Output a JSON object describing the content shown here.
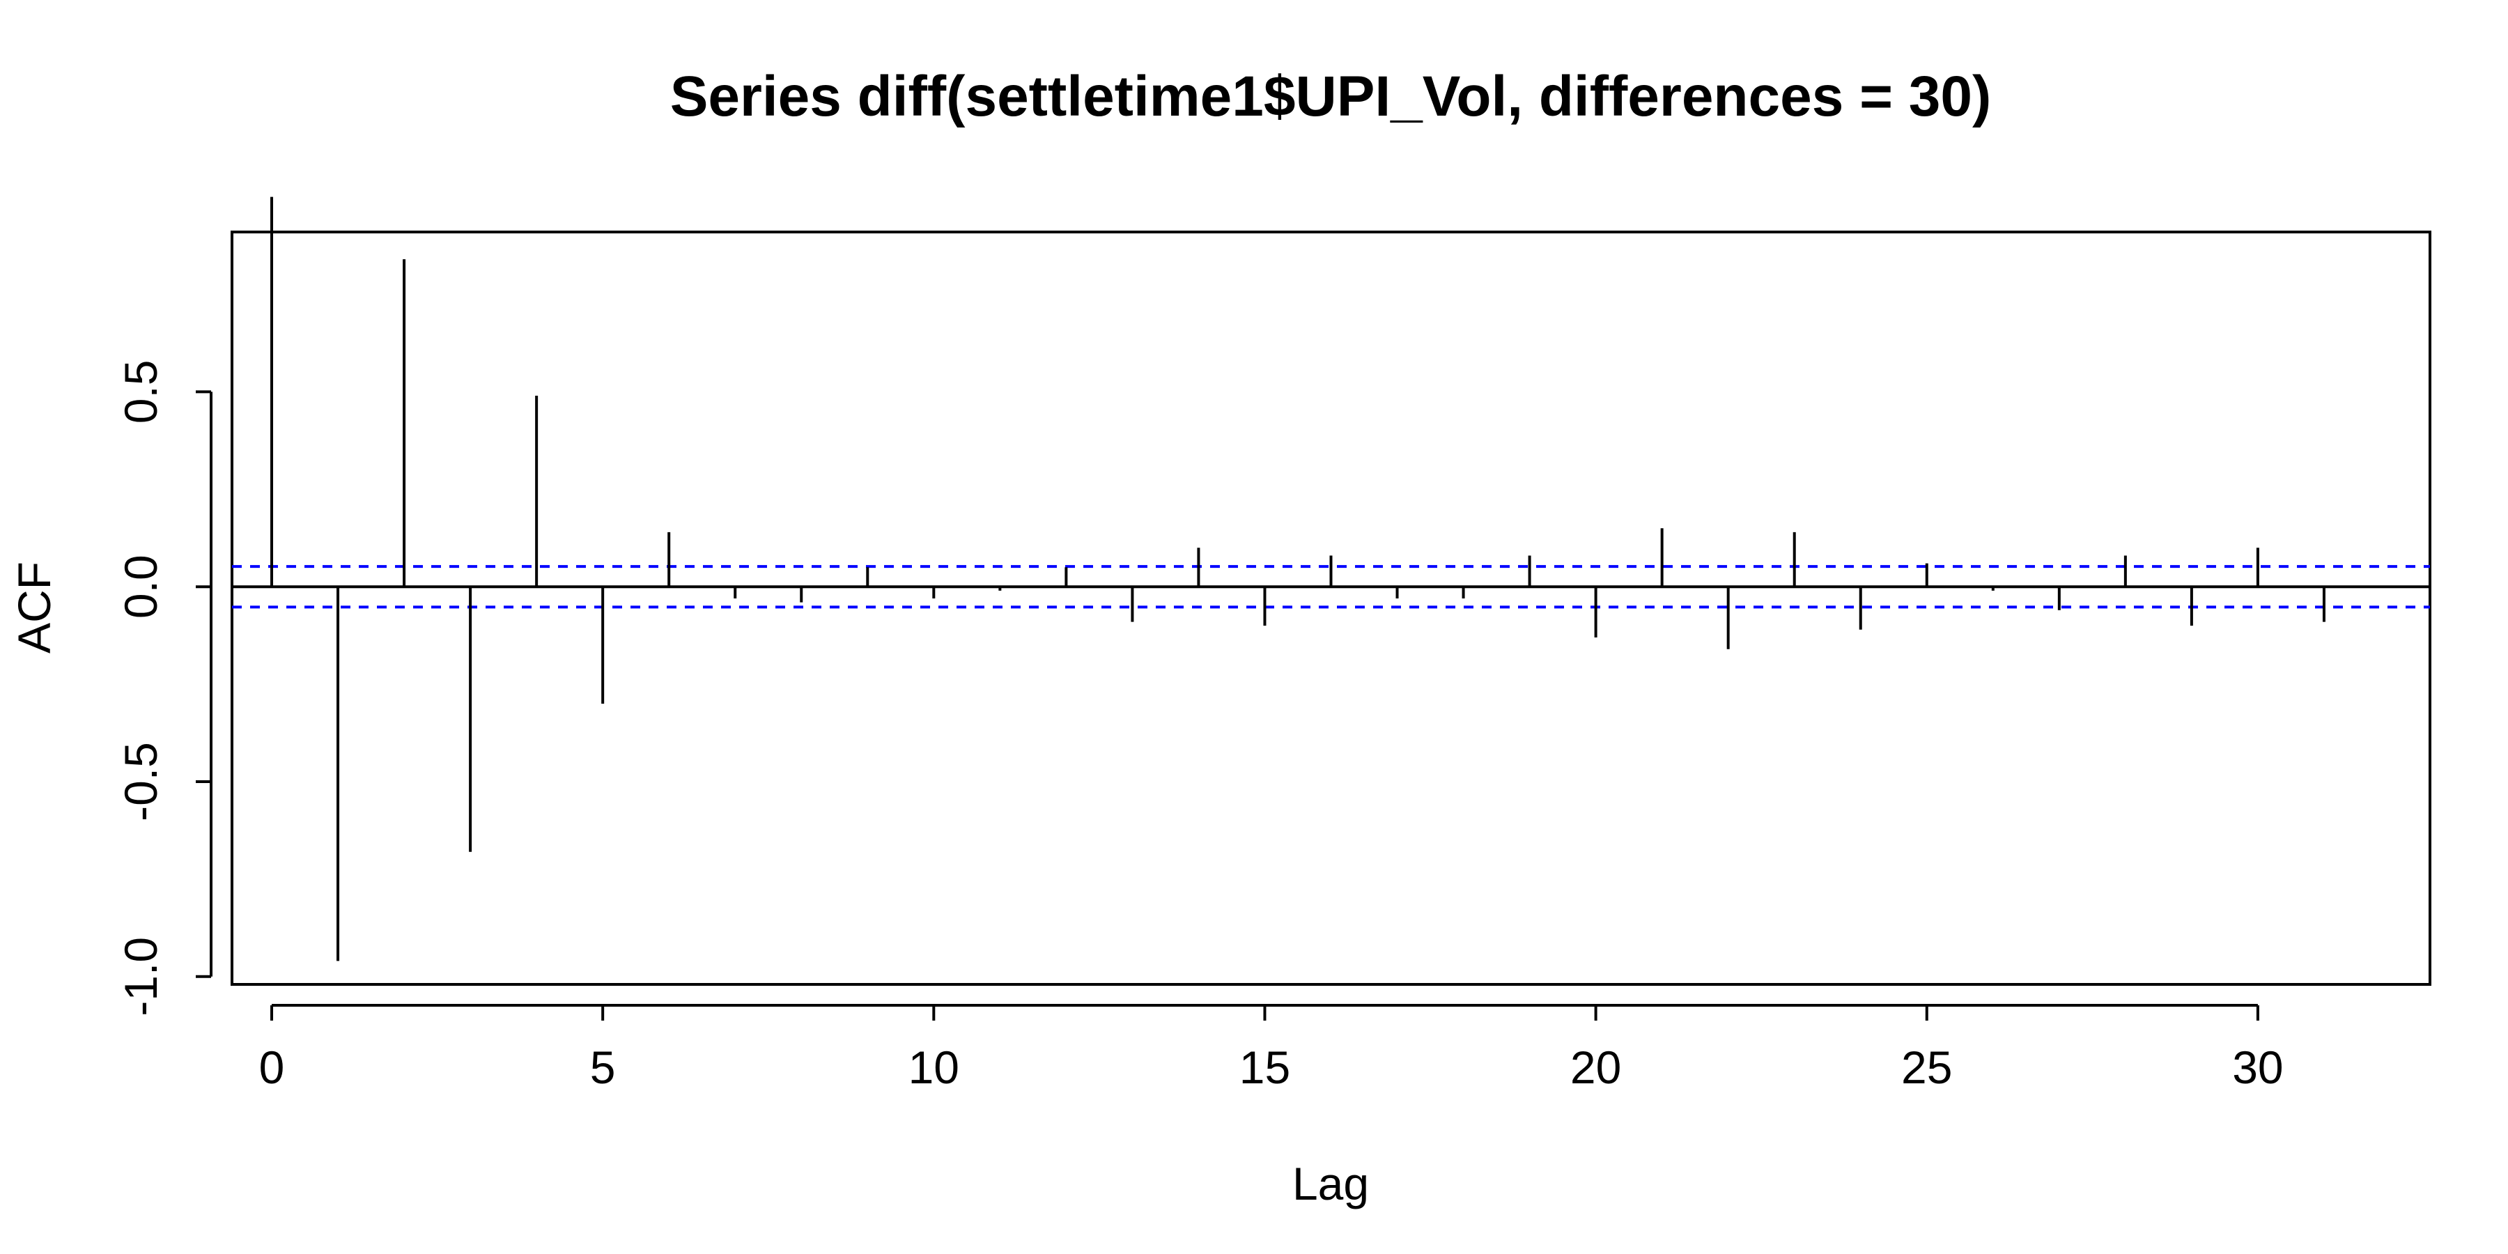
{
  "chart_data": {
    "type": "bar",
    "title": "Series  diff(settletime1$UPI_Vol, differences = 30)",
    "xlabel": "Lag",
    "ylabel": "ACF",
    "x": [
      0,
      1,
      2,
      3,
      4,
      5,
      6,
      7,
      8,
      9,
      10,
      11,
      12,
      13,
      14,
      15,
      16,
      17,
      18,
      19,
      20,
      21,
      22,
      23,
      24,
      25,
      26,
      27,
      28,
      29,
      30,
      31
    ],
    "series": [
      {
        "values": [
          1.0,
          -0.96,
          0.84,
          -0.68,
          0.49,
          -0.3,
          0.14,
          -0.03,
          -0.04,
          0.05,
          -0.03,
          -0.01,
          0.05,
          -0.09,
          0.1,
          -0.1,
          0.08,
          -0.03,
          -0.03,
          0.08,
          -0.13,
          0.15,
          -0.16,
          0.14,
          -0.11,
          0.06,
          -0.01,
          -0.06,
          0.08,
          -0.1,
          0.1,
          -0.09
        ]
      }
    ],
    "confidence_bound": 0.052,
    "xlim": [
      -0.6,
      32.6
    ],
    "ylim": [
      -1.02,
      0.91
    ],
    "x_ticks": [
      "0",
      "5",
      "10",
      "15",
      "20",
      "25",
      "30"
    ],
    "y_ticks": [
      "-1.0",
      "-0.5",
      "0.0",
      "0.5"
    ],
    "grid": false,
    "colors": {
      "bars": "#000000",
      "confidence": "#0000ff",
      "axes": "#000000"
    }
  }
}
